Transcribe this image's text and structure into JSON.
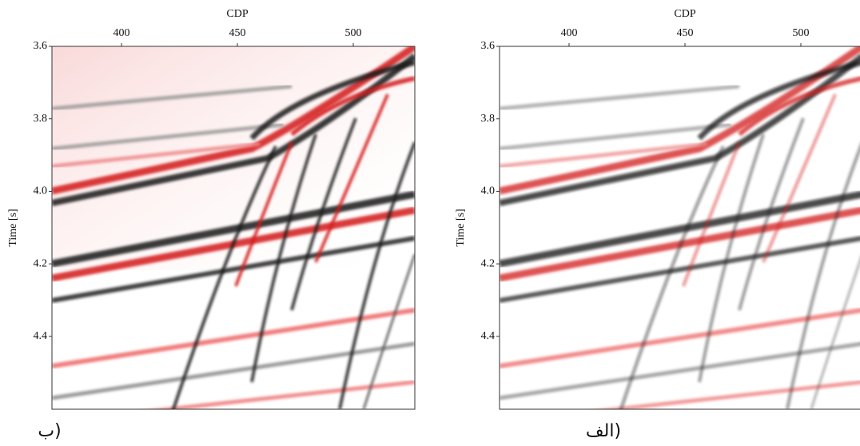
{
  "panels": [
    {
      "caption": "ب)",
      "x_label": "CDP",
      "y_label": "Time [s]",
      "x_ticks": [
        400,
        450,
        500
      ],
      "y_ticks": [
        "3.6",
        "3.8",
        "4.0",
        "4.2",
        "4.4"
      ]
    },
    {
      "caption": "الف)",
      "x_label": "CDP",
      "y_label": "Time [s]",
      "x_ticks": [
        400,
        450,
        500
      ],
      "y_ticks": [
        "3.6",
        "3.8",
        "4.0",
        "4.2",
        "4.4"
      ]
    }
  ]
}
